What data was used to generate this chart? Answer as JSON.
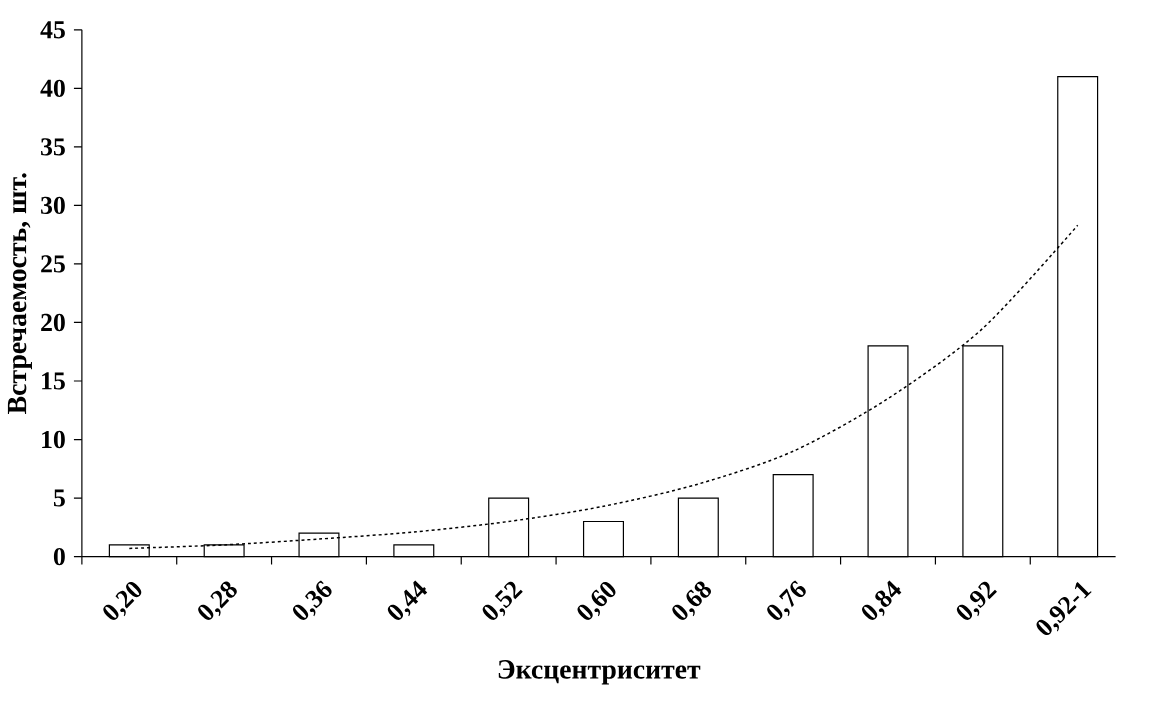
{
  "chart_data": {
    "type": "bar",
    "xlabel": "Эксцентриситет",
    "ylabel": "Встречаемость, шт.",
    "categories": [
      "0,20",
      "0,28",
      "0,36",
      "0,44",
      "0,52",
      "0,60",
      "0,68",
      "0,76",
      "0,84",
      "0,92",
      "0,92-1"
    ],
    "series": [
      {
        "color": "#ffffff",
        "values": [
          1,
          1,
          2,
          1,
          5,
          3,
          5,
          7,
          18,
          18,
          41
        ]
      },
      {
        "type": "line",
        "color": "#000000",
        "line_style": "dashed",
        "marker": "none",
        "values": [
          0.7,
          1.0,
          1.5,
          2.1,
          3.0,
          4.3,
          6.2,
          9.0,
          13.5,
          19.5,
          28.3
        ]
      }
    ],
    "ylim": [
      0,
      45
    ],
    "yticks": [
      0,
      5,
      10,
      15,
      20,
      25,
      30,
      35,
      40,
      45
    ],
    "grid": false
  }
}
